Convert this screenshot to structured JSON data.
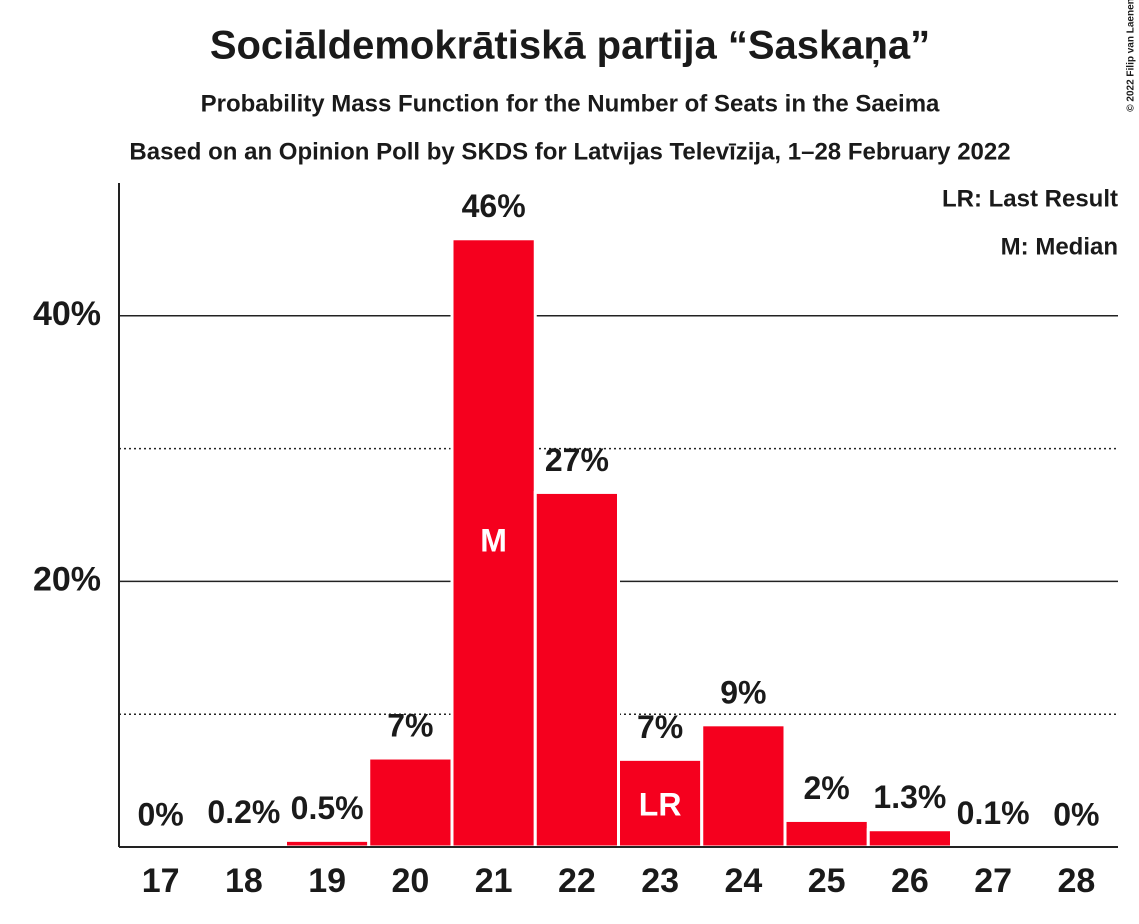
{
  "chart_data": {
    "type": "bar",
    "title": "Sociāldemokrātiskā partija “Saskaņa”",
    "subtitle": "Probability Mass Function for the Number of Seats in the Saeima",
    "subtitle2": "Based on an Opinion Poll by SKDS for Latvijas Televīzija, 1–28 February 2022",
    "copyright": "© 2022 Filip van Laenen",
    "categories": [
      "17",
      "18",
      "19",
      "20",
      "21",
      "22",
      "23",
      "24",
      "25",
      "26",
      "27",
      "28"
    ],
    "values": [
      0,
      0.2,
      0.5,
      6.7,
      45.8,
      26.7,
      6.6,
      9.2,
      2.0,
      1.3,
      0.1,
      0
    ],
    "value_labels": [
      "0%",
      "0.2%",
      "0.5%",
      "7%",
      "46%",
      "27%",
      "7%",
      "9%",
      "2%",
      "1.3%",
      "0.1%",
      "0%"
    ],
    "color": "#f5001e",
    "ylim": [
      0,
      50
    ],
    "yticks": [
      {
        "value": 20,
        "label": "20%"
      },
      {
        "value": 40,
        "label": "40%"
      }
    ],
    "minor_yticks": [
      10,
      30
    ],
    "grid": true,
    "median": "21",
    "median_label": "M",
    "last_result": "23",
    "last_result_label": "LR",
    "legend": [
      "LR: Last Result",
      "M: Median"
    ]
  }
}
